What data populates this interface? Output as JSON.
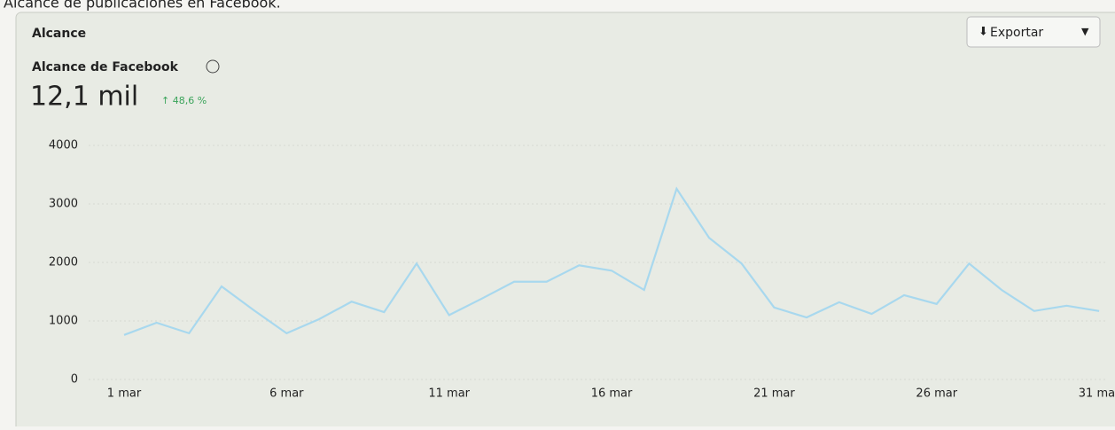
{
  "page": {
    "caption": "Alcance de publicaciones en Facebook.",
    "export_button": "Exportar",
    "metric_label": "Alcance de Facebook",
    "metric_value": "12,1 mil",
    "metric_change": "↑ 48,6 %"
  },
  "chart_data": {
    "type": "line",
    "title": "Alcance",
    "categories": [
      "1 mar",
      null,
      null,
      null,
      null,
      "6 mar",
      null,
      null,
      null,
      null,
      "11 mar",
      null,
      null,
      null,
      null,
      "16 mar",
      null,
      null,
      null,
      null,
      "21 mar",
      null,
      null,
      null,
      null,
      "26 mar",
      null,
      null,
      null,
      null,
      "31 mar"
    ],
    "series": [
      {
        "name": "Alcance de Facebook",
        "color": "#a8d8ee",
        "values": [
          760,
          970,
          790,
          1590,
          1180,
          790,
          1030,
          1330,
          1150,
          1980,
          1100,
          1380,
          1670,
          1670,
          1950,
          1860,
          1530,
          3260,
          2420,
          1980,
          1230,
          1060,
          1320,
          1120,
          1440,
          1290,
          1980,
          1530,
          1170,
          1260,
          1170
        ]
      }
    ],
    "ylim": [
      0,
      4000
    ],
    "yticks": [
      0,
      1000,
      2000,
      3000,
      4000
    ],
    "grid": true
  }
}
